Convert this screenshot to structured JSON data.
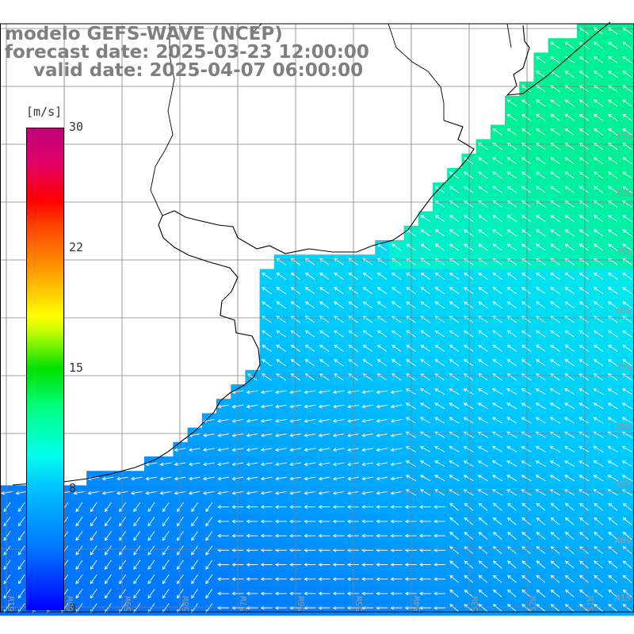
{
  "title": {
    "line1": "modelo GEFS-WAVE (NCEP)",
    "line2": "forecast date: 2025-03-23 12:00:00",
    "line3": "valid date: 2025-04-07 06:00:00"
  },
  "colorbar": {
    "unit": "[m/s]",
    "ticks": [
      "30",
      "22",
      "15",
      "8",
      "0"
    ],
    "tick_values": [
      30,
      22,
      15,
      8,
      0
    ],
    "min": 0,
    "max": 30
  },
  "grid": {
    "lat_labels": [
      "33S",
      "34S",
      "35S",
      "36S",
      "37S",
      "38S",
      "39S",
      "40S",
      "41S"
    ],
    "lon_labels": [
      "61W",
      "60W",
      "59W",
      "58W",
      "57W",
      "56W",
      "55W",
      "54W",
      "53W",
      "52W",
      "51W"
    ]
  },
  "colors": {
    "land": "#ffffff",
    "coast": "#000000",
    "grid": "#808080",
    "arrow": "#ffffff",
    "title": "#7f7f7f"
  }
}
